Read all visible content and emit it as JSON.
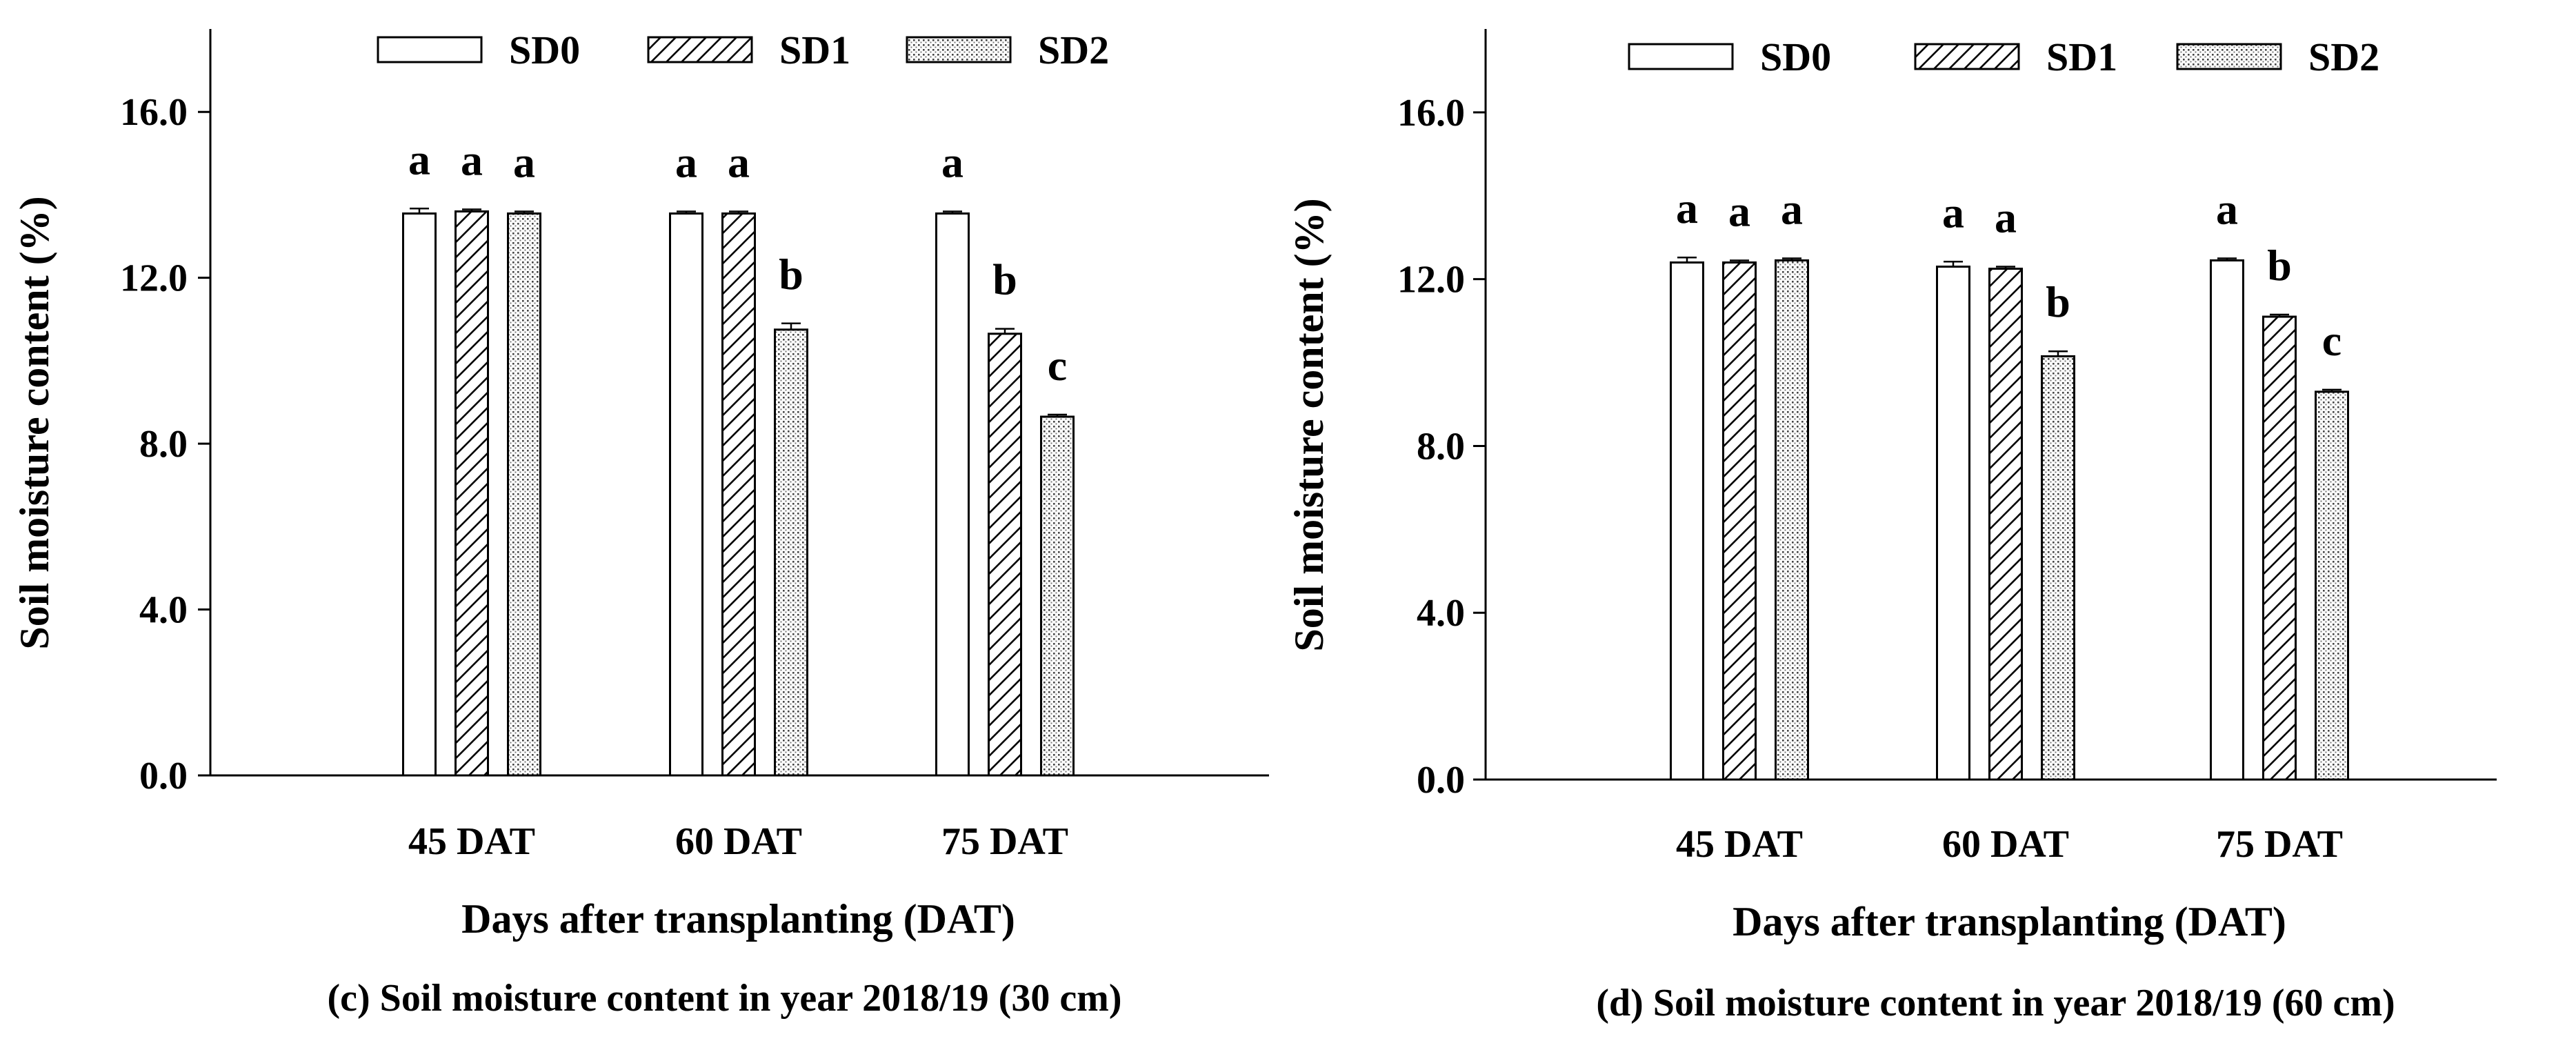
{
  "legend_labels": [
    "SD0",
    "SD1",
    "SD2"
  ],
  "chart_data": [
    {
      "type": "bar",
      "title": "",
      "caption": "(c) Soil moisture content in year 2018/19 (30 cm)",
      "xlabel": "Days after transplanting (DAT)",
      "ylabel": "Soil moisture content (%)",
      "ylim": [
        0,
        18
      ],
      "yticks": [
        "0.0",
        "4.0",
        "8.0",
        "12.0",
        "16.0"
      ],
      "categories": [
        "45 DAT",
        "60 DAT",
        "75 DAT"
      ],
      "series": [
        {
          "name": "SD0",
          "values": [
            13.55,
            13.55,
            13.55
          ],
          "errors": [
            0.12,
            0.05,
            0.05
          ],
          "letters": [
            "a",
            "a",
            "a"
          ]
        },
        {
          "name": "SD1",
          "values": [
            13.6,
            13.55,
            10.65
          ],
          "errors": [
            0.05,
            0.05,
            0.12
          ],
          "letters": [
            "a",
            "a",
            "b"
          ]
        },
        {
          "name": "SD2",
          "values": [
            13.55,
            10.75,
            8.65
          ],
          "errors": [
            0.05,
            0.15,
            0.05
          ],
          "letters": [
            "a",
            "b",
            "c"
          ]
        }
      ],
      "legend": "top"
    },
    {
      "type": "bar",
      "title": "",
      "caption": "(d) Soil moisture content in year 2018/19 (60 cm)",
      "xlabel": "Days after transplanting (DAT)",
      "ylabel": "Soil moisture content (%)",
      "ylim": [
        0,
        18
      ],
      "yticks": [
        "0.0",
        "4.0",
        "8.0",
        "12.0",
        "16.0"
      ],
      "categories": [
        "45 DAT",
        "60 DAT",
        "75 DAT"
      ],
      "series": [
        {
          "name": "SD0",
          "values": [
            12.4,
            12.3,
            12.45
          ],
          "errors": [
            0.12,
            0.12,
            0.05
          ],
          "letters": [
            "a",
            "a",
            "a"
          ]
        },
        {
          "name": "SD1",
          "values": [
            12.4,
            12.25,
            11.1
          ],
          "errors": [
            0.05,
            0.05,
            0.05
          ],
          "letters": [
            "a",
            "a",
            "b"
          ]
        },
        {
          "name": "SD2",
          "values": [
            12.45,
            10.15,
            9.3
          ],
          "errors": [
            0.05,
            0.12,
            0.05
          ],
          "letters": [
            "a",
            "b",
            "c"
          ]
        }
      ],
      "legend": "top"
    }
  ]
}
